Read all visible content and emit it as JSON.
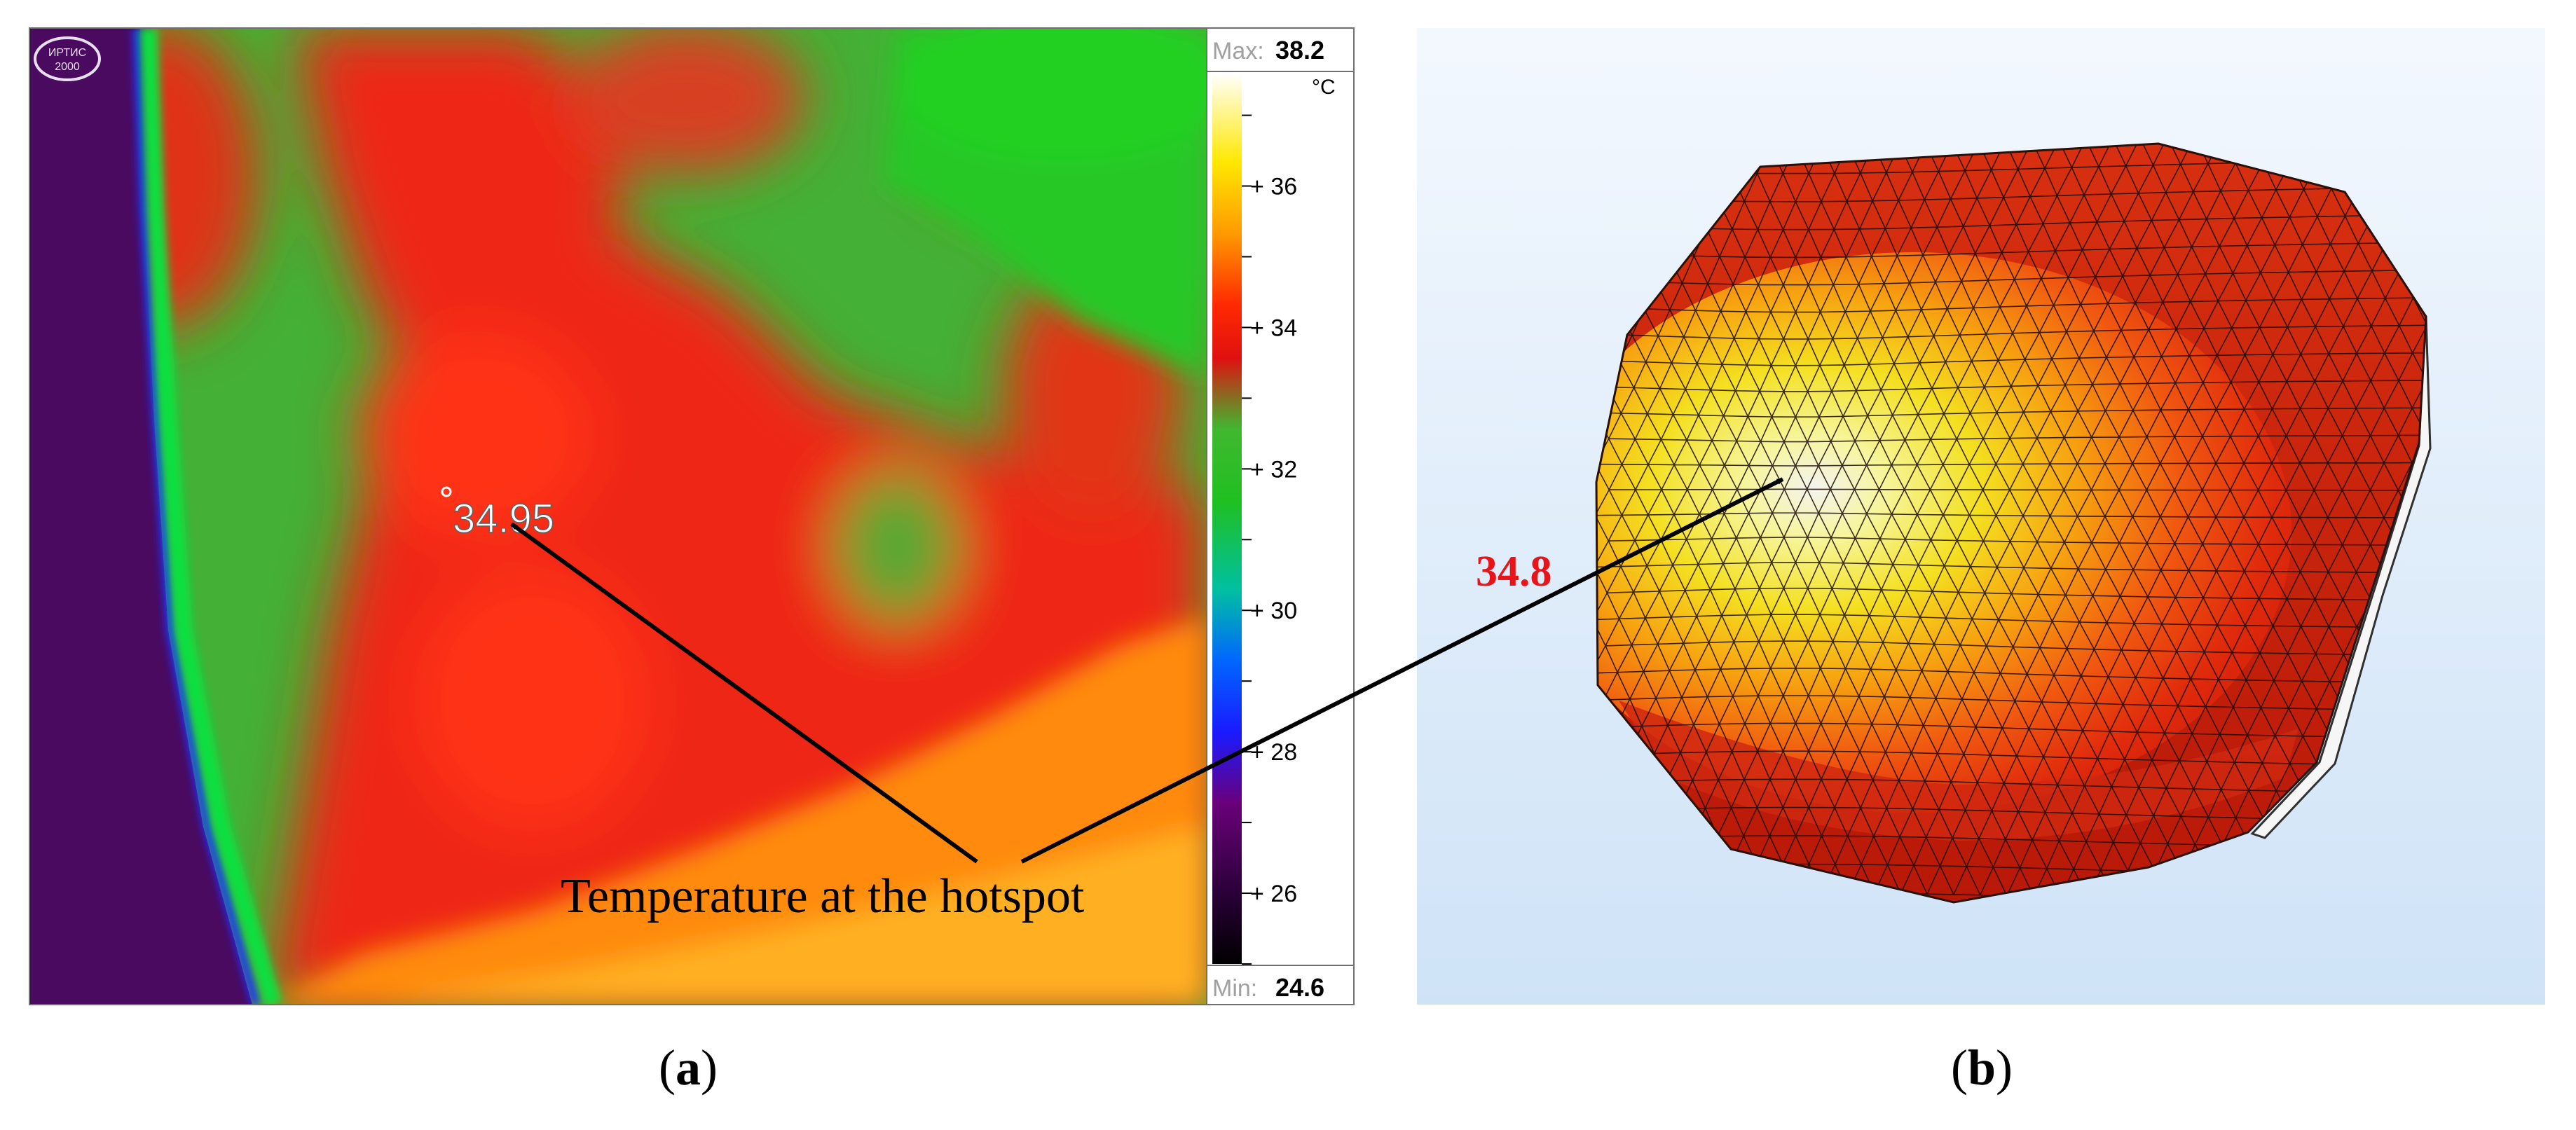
{
  "panel_a": {
    "label_letter": "a",
    "spot_reading": "34.95",
    "scale": {
      "max_prefix": "Max:",
      "max_value": "38.2",
      "min_prefix": "Min:",
      "min_value": "24.6",
      "unit": "°C",
      "ticks": [
        "36",
        "34",
        "32",
        "30",
        "28",
        "26"
      ]
    },
    "logo_text_top": "ИРТИС",
    "logo_text_bottom": "2000"
  },
  "panel_b": {
    "label_letter": "b",
    "hotspot_value": "34.8"
  },
  "annotation": {
    "text": "Temperature at the hotspot"
  },
  "colors": {
    "annotation_arrow": "#000000",
    "hotspot_value": "#e8141a",
    "mesh_background_top": "#f3f8fe",
    "mesh_background_bottom": "#cfe3f7"
  }
}
